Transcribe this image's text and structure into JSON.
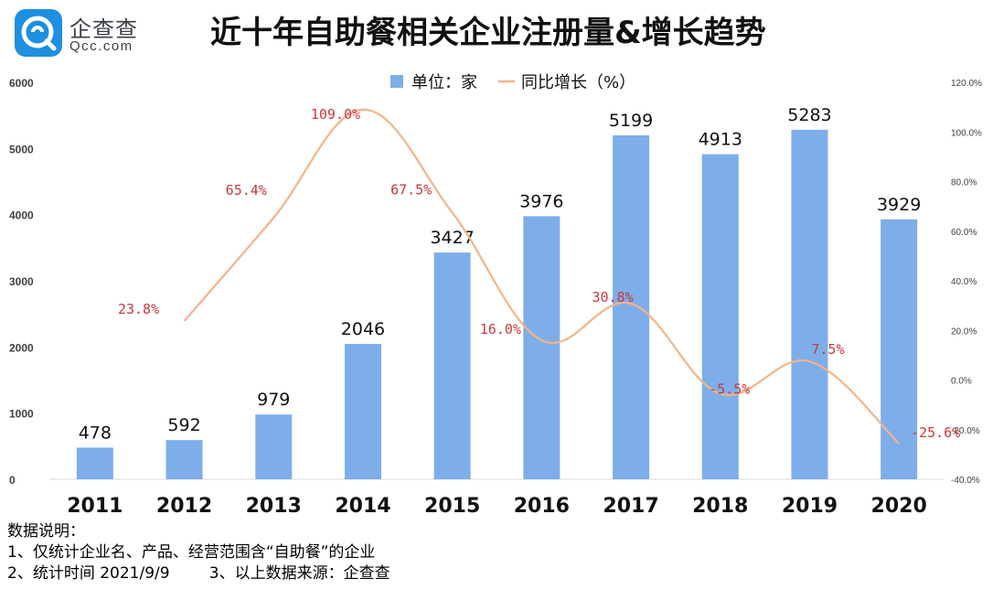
{
  "brand": {
    "name": "企查查",
    "domain": "Qcc.com",
    "color": "#1e8fe1"
  },
  "chart_data": {
    "type": "bar+line",
    "title": "近十年自助餐相关企业注册量&增长趋势",
    "categories": [
      "2011",
      "2012",
      "2013",
      "2014",
      "2015",
      "2016",
      "2017",
      "2018",
      "2019",
      "2020"
    ],
    "bar_series": {
      "name": "单位：家",
      "values": [
        478,
        592,
        979,
        2046,
        3427,
        3976,
        5199,
        4913,
        5283,
        3929
      ],
      "color": "#7daeea"
    },
    "line_series": {
      "name": "同比增长（%）",
      "values": [
        null,
        23.8,
        65.4,
        109.0,
        67.5,
        16.0,
        30.8,
        -5.5,
        7.5,
        -25.6
      ],
      "labels": [
        null,
        "23.8%",
        "65.4%",
        "109.0%",
        "67.5%",
        "16.0%",
        "30.8%",
        "-5.5%",
        "7.5%",
        "-25.6%"
      ],
      "color": "#f5b386",
      "label_color": "#c8373b"
    },
    "y_left": {
      "ylim": [
        0,
        6000
      ],
      "ticks": [
        "0",
        "1000",
        "2000",
        "3000",
        "4000",
        "5000",
        "6000"
      ]
    },
    "y_right": {
      "ylim": [
        -40,
        120
      ],
      "ticks": [
        "-40.0%",
        "-20.0%",
        "0.0%",
        "20.0%",
        "40.0%",
        "60.0%",
        "80.0%",
        "100.0%",
        "120.0%"
      ]
    },
    "legend_position": "top-center",
    "grid": false
  },
  "notes": {
    "heading": "数据说明：",
    "line1": "1、仅统计企业名、产品、经营范围含“自助餐”的企业",
    "line2": "2、统计时间 2021/9/9        3、以上数据来源：企查查"
  }
}
